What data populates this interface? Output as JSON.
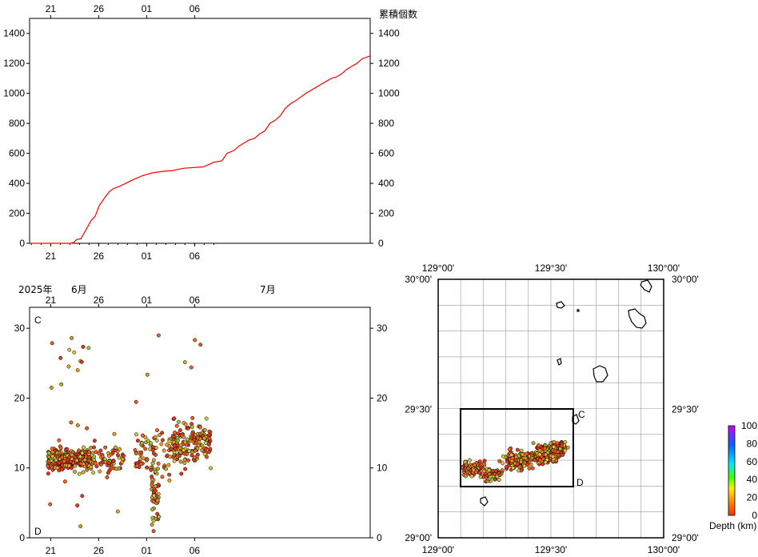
{
  "charts": {
    "cumulative": {
      "type": "line",
      "label": "累積個数",
      "y_ticks": [
        "0",
        "200",
        "400",
        "600",
        "800",
        "1000",
        "1200",
        "1400"
      ],
      "x_ticks": [
        "21",
        "26",
        "01",
        "06"
      ],
      "ylim": [
        0,
        1500
      ],
      "line_color": "#ff0000",
      "x": [
        0,
        4.0,
        4.3,
        4.6,
        5.0,
        5.6,
        6.0,
        6.4,
        6.8,
        7.3,
        7.8,
        8.2,
        8.8,
        9.4,
        10.0,
        11.0,
        12.0,
        13.0,
        14.0,
        15.0,
        16.0,
        17.0,
        18.0,
        18.4,
        18.8,
        19.3,
        20.0,
        20.5,
        21.0,
        21.5,
        22.0,
        22.5,
        23.0,
        23.5,
        24.0,
        24.5,
        25.0,
        25.5,
        26.0,
        26.5,
        27.0,
        27.5,
        28.0,
        28.5,
        29.0,
        29.5,
        30.0,
        30.5,
        31.0,
        31.5,
        32.0,
        32.5,
        33.3
      ],
      "y": [
        0,
        0,
        5,
        25,
        30,
        100,
        150,
        180,
        250,
        300,
        345,
        365,
        380,
        400,
        420,
        450,
        470,
        480,
        485,
        500,
        505,
        510,
        540,
        545,
        550,
        600,
        620,
        650,
        670,
        690,
        700,
        730,
        750,
        800,
        820,
        850,
        900,
        930,
        950,
        975,
        1000,
        1020,
        1040,
        1060,
        1080,
        1100,
        1110,
        1130,
        1160,
        1180,
        1200,
        1230,
        1250
      ]
    },
    "depth_time": {
      "type": "scatter",
      "corner_top": "C",
      "corner_bottom": "D",
      "year_label": "2025年",
      "month_labels": [
        "6月",
        "7月"
      ],
      "y_ticks": [
        "0",
        "10",
        "20",
        "30"
      ],
      "x_ticks": [
        "21",
        "26",
        "01",
        "06"
      ],
      "ylim": [
        0,
        33
      ],
      "cluster_note_series": "depth scatter"
    },
    "epicenter_map": {
      "type": "scatter",
      "lon_ticks": [
        "129°00'",
        "129°30'",
        "130°00'"
      ],
      "lat_ticks": [
        "29°00'",
        "29°30'",
        "30°00'"
      ],
      "box_label_c": "C",
      "box_label_d": "D",
      "lon_range": [
        129.0,
        130.0
      ],
      "lat_range": [
        29.0,
        30.0
      ]
    },
    "colorbar": {
      "title": "Depth (km)",
      "ticks": [
        "0",
        "20",
        "40",
        "60",
        "80",
        "100"
      ],
      "colors": [
        "#ff3300",
        "#ffcc00",
        "#00ff00",
        "#00d4ff",
        "#0066ff",
        "#cc00ff"
      ]
    }
  }
}
